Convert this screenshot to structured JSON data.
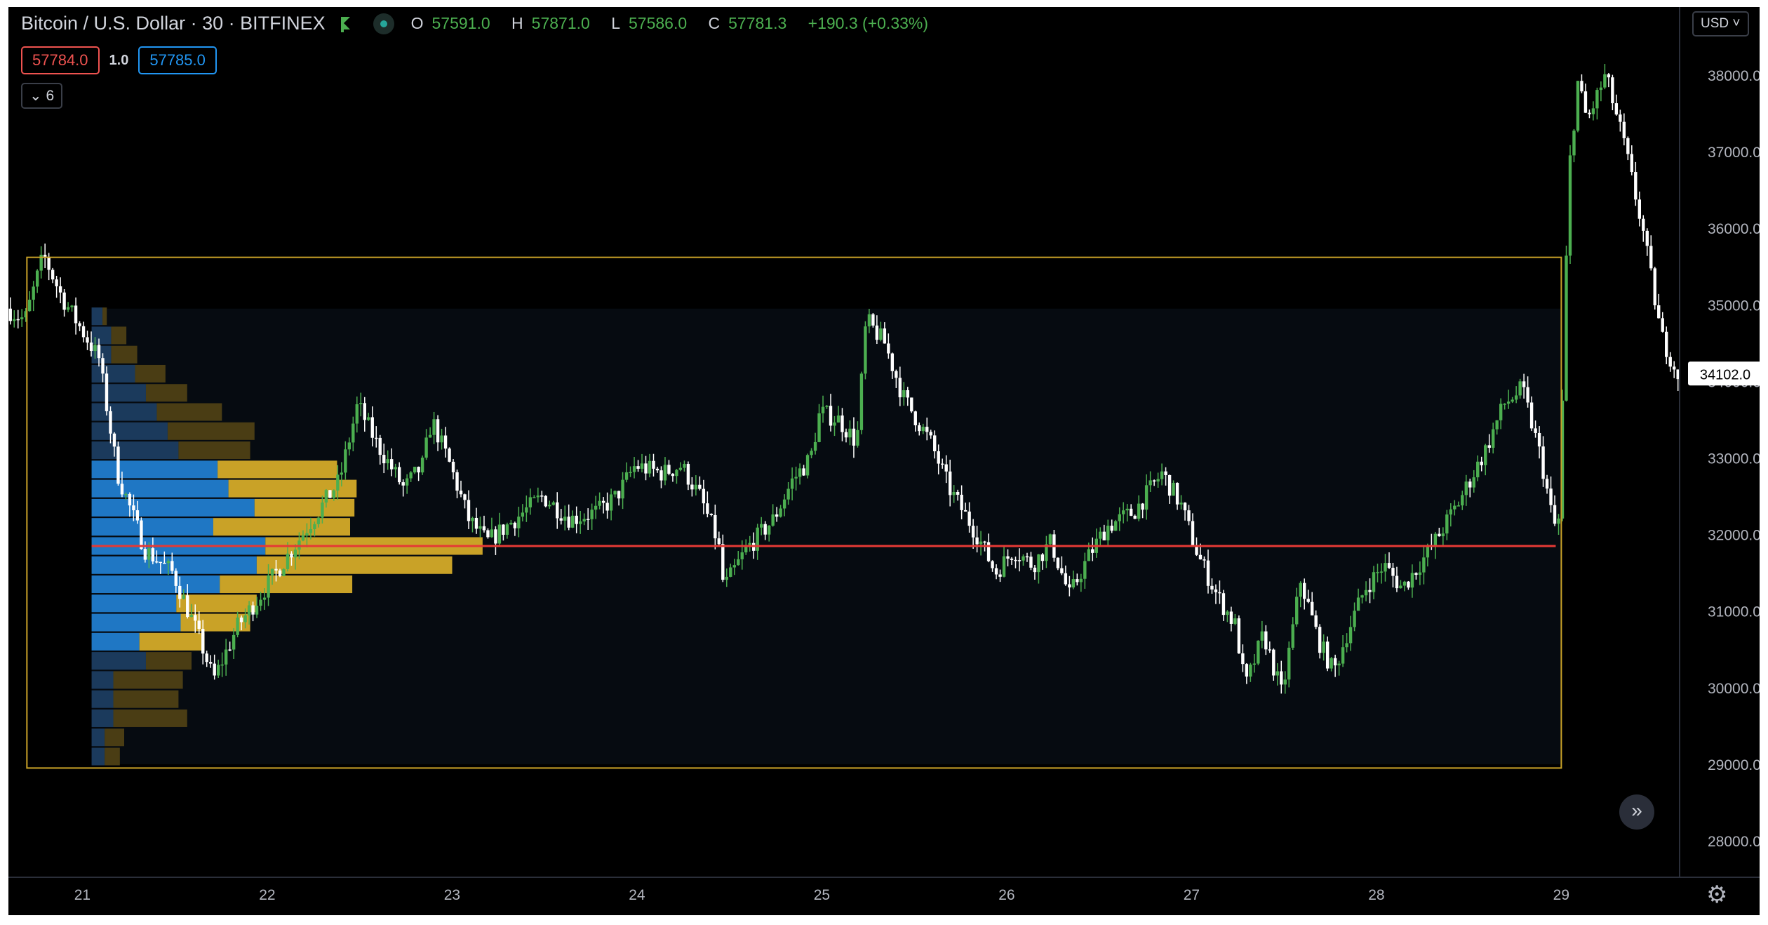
{
  "header": {
    "symbol": "Bitcoin / U.S. Dollar · 30 · BITFINEX",
    "ohlc": [
      {
        "key": "O",
        "value": "57591.0"
      },
      {
        "key": "H",
        "value": "57871.0"
      },
      {
        "key": "L",
        "value": "57586.0"
      },
      {
        "key": "C",
        "value": "57781.3"
      }
    ],
    "change": "+190.3 (+0.33%)",
    "sell_price": "57784.0",
    "spread": "1.0",
    "buy_price": "57785.0",
    "indicators_count": "6",
    "currency": "USD"
  },
  "colors": {
    "background": "#000000",
    "up_candle": "#4caf50",
    "down_candle": "#ffffff",
    "range_box": "#c9a227",
    "poc_line": "#e53935",
    "profile_value_up": "#1f77c4",
    "profile_value_down": "#c9a227",
    "profile_out_up": "#1b3a5c",
    "profile_out_down": "#4a3d14"
  },
  "chart_data": {
    "type": "candlestick",
    "x_ticks": [
      "21",
      "22",
      "23",
      "24",
      "25",
      "26",
      "27",
      "28",
      "29"
    ],
    "y_ticks": [
      "28000.0",
      "29000.0",
      "30000.0",
      "31000.0",
      "32000.0",
      "33000.0",
      "34000.0",
      "35000.0",
      "36000.0",
      "37000.0",
      "38000.0"
    ],
    "ylim": [
      27400,
      39000
    ],
    "xlim": [
      20.6,
      29.64
    ],
    "last_price_label": "34102.0",
    "last_price": 34102,
    "range_box": {
      "x_start": 20.7,
      "x_end": 29.0,
      "y_low": 28950,
      "y_high": 35620
    },
    "poc": {
      "price": 31850,
      "x_start": 21.05,
      "x_end": 28.97
    },
    "volume_profile": {
      "x_start": 21.05,
      "bins_high": 34950,
      "bins_low": 29000,
      "value_area": [
        30600,
        33000
      ],
      "bins": [
        {
          "price": 29100,
          "up": 0.06,
          "down": 0.07
        },
        {
          "price": 29350,
          "up": 0.06,
          "down": 0.09
        },
        {
          "price": 29600,
          "up": 0.1,
          "down": 0.34
        },
        {
          "price": 29850,
          "up": 0.1,
          "down": 0.3
        },
        {
          "price": 30100,
          "up": 0.1,
          "down": 0.32
        },
        {
          "price": 30350,
          "up": 0.25,
          "down": 0.21
        },
        {
          "price": 30600,
          "up": 0.22,
          "down": 0.3
        },
        {
          "price": 30850,
          "up": 0.41,
          "down": 0.32
        },
        {
          "price": 31100,
          "up": 0.39,
          "down": 0.37
        },
        {
          "price": 31350,
          "up": 0.59,
          "down": 0.61
        },
        {
          "price": 31600,
          "up": 0.76,
          "down": 0.9
        },
        {
          "price": 31850,
          "up": 0.8,
          "down": 1.0
        },
        {
          "price": 32100,
          "up": 0.56,
          "down": 0.63
        },
        {
          "price": 32350,
          "up": 0.75,
          "down": 0.46
        },
        {
          "price": 32600,
          "up": 0.63,
          "down": 0.59
        },
        {
          "price": 32850,
          "up": 0.58,
          "down": 0.55
        },
        {
          "price": 33100,
          "up": 0.4,
          "down": 0.33
        },
        {
          "price": 33350,
          "up": 0.35,
          "down": 0.4
        },
        {
          "price": 33600,
          "up": 0.3,
          "down": 0.3
        },
        {
          "price": 33850,
          "up": 0.25,
          "down": 0.19
        },
        {
          "price": 34100,
          "up": 0.2,
          "down": 0.14
        },
        {
          "price": 34350,
          "up": 0.09,
          "down": 0.12
        },
        {
          "price": 34600,
          "up": 0.09,
          "down": 0.07
        },
        {
          "price": 34850,
          "up": 0.05,
          "down": 0.02
        }
      ]
    },
    "price_path": [
      [
        20.6,
        34950
      ],
      [
        20.7,
        34800
      ],
      [
        20.8,
        35650
      ],
      [
        20.9,
        35100
      ],
      [
        21.0,
        34700
      ],
      [
        21.1,
        34300
      ],
      [
        21.2,
        32800
      ],
      [
        21.35,
        31800
      ],
      [
        21.5,
        31500
      ],
      [
        21.65,
        30600
      ],
      [
        21.72,
        30100
      ],
      [
        21.85,
        30800
      ],
      [
        22.0,
        31300
      ],
      [
        22.2,
        32000
      ],
      [
        22.4,
        32700
      ],
      [
        22.5,
        33700
      ],
      [
        22.6,
        33200
      ],
      [
        22.75,
        32600
      ],
      [
        22.85,
        32900
      ],
      [
        22.9,
        33500
      ],
      [
        23.0,
        32900
      ],
      [
        23.1,
        32200
      ],
      [
        23.2,
        31900
      ],
      [
        23.35,
        32200
      ],
      [
        23.5,
        32500
      ],
      [
        23.65,
        32200
      ],
      [
        23.8,
        32300
      ],
      [
        23.9,
        32500
      ],
      [
        24.0,
        32900
      ],
      [
        24.15,
        32800
      ],
      [
        24.25,
        32900
      ],
      [
        24.35,
        32500
      ],
      [
        24.45,
        31900
      ],
      [
        24.48,
        31300
      ],
      [
        24.6,
        31800
      ],
      [
        24.75,
        32200
      ],
      [
        24.85,
        32700
      ],
      [
        24.95,
        33000
      ],
      [
        25.0,
        33600
      ],
      [
        25.1,
        33500
      ],
      [
        25.2,
        33200
      ],
      [
        25.25,
        34800
      ],
      [
        25.35,
        34500
      ],
      [
        25.45,
        33800
      ],
      [
        25.6,
        33200
      ],
      [
        25.7,
        32600
      ],
      [
        25.85,
        32000
      ],
      [
        25.95,
        31500
      ],
      [
        26.05,
        31800
      ],
      [
        26.15,
        31600
      ],
      [
        26.25,
        31900
      ],
      [
        26.35,
        31200
      ],
      [
        26.45,
        31700
      ],
      [
        26.55,
        32100
      ],
      [
        26.7,
        32300
      ],
      [
        26.85,
        32800
      ],
      [
        26.95,
        32400
      ],
      [
        27.05,
        31700
      ],
      [
        27.15,
        31200
      ],
      [
        27.25,
        30800
      ],
      [
        27.3,
        30000
      ],
      [
        27.4,
        30700
      ],
      [
        27.5,
        29900
      ],
      [
        27.6,
        31400
      ],
      [
        27.7,
        30600
      ],
      [
        27.78,
        30200
      ],
      [
        27.85,
        30700
      ],
      [
        27.95,
        31300
      ],
      [
        28.05,
        31600
      ],
      [
        28.15,
        31300
      ],
      [
        28.3,
        31800
      ],
      [
        28.45,
        32400
      ],
      [
        28.6,
        33100
      ],
      [
        28.7,
        33700
      ],
      [
        28.8,
        33900
      ],
      [
        28.9,
        33000
      ],
      [
        28.97,
        32100
      ],
      [
        29.0,
        32200
      ],
      [
        29.05,
        36700
      ],
      [
        29.1,
        37900
      ],
      [
        29.15,
        37400
      ],
      [
        29.25,
        38000
      ],
      [
        29.35,
        37100
      ],
      [
        29.45,
        36000
      ],
      [
        29.55,
        34600
      ],
      [
        29.64,
        34100
      ]
    ]
  }
}
